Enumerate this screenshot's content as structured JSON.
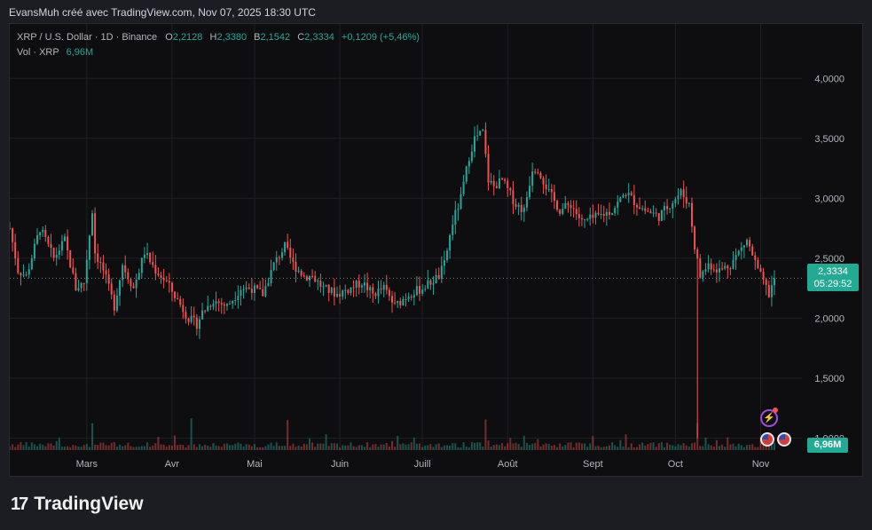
{
  "header": {
    "author_line": "EvansMuh créé avec TradingView.com, Nov 07, 2025 18:30 UTC"
  },
  "legend": {
    "symbol": "XRP / U.S. Dollar · 1D · Binance",
    "o_label": "O",
    "o_value": "2,2128",
    "h_label": "H",
    "h_value": "2,3380",
    "b_label": "B",
    "b_value": "2,1542",
    "c_label": "C",
    "c_value": "2,3334",
    "change": "+0,1209 (+5,46%)",
    "vol_label": "Vol · XRP",
    "vol_value": "6,96M"
  },
  "price_tag": {
    "price": "2,3334",
    "countdown": "05:29:52"
  },
  "volume_tag": "6,96M",
  "brand": {
    "logo": "17",
    "name": "TradingView"
  },
  "colors": {
    "up": "#26a69a",
    "down": "#ef5350",
    "background": "#0e0e10",
    "grid": "#1f2024",
    "text": "#b2b5be"
  },
  "chart_data": {
    "type": "candlestick",
    "symbol": "XRP / U.S. Dollar",
    "interval": "1D",
    "exchange": "Binance",
    "y_ticks": [
      "4,0000",
      "3,5000",
      "3,0000",
      "2,5000",
      "2,0000",
      "1,5000",
      "1,0000"
    ],
    "y_tick_values": [
      4.0,
      3.5,
      3.0,
      2.5,
      2.0,
      1.5,
      1.0
    ],
    "x_labels": [
      "Mars",
      "Avr",
      "Mai",
      "Juin",
      "Juill",
      "Août",
      "Sept",
      "Oct",
      "Nov"
    ],
    "x_label_days": [
      28,
      59,
      89,
      120,
      150,
      181,
      212,
      242,
      273
    ],
    "y_range": [
      0.9,
      4.35
    ],
    "last_close": 2.3334,
    "close_keyframes": [
      [
        0,
        2.75
      ],
      [
        3,
        2.4
      ],
      [
        6,
        2.35
      ],
      [
        11,
        2.75
      ],
      [
        16,
        2.5
      ],
      [
        20,
        2.65
      ],
      [
        24,
        2.25
      ],
      [
        27,
        2.3
      ],
      [
        30,
        2.9
      ],
      [
        31,
        2.55
      ],
      [
        34,
        2.4
      ],
      [
        38,
        2.1
      ],
      [
        41,
        2.45
      ],
      [
        45,
        2.25
      ],
      [
        49,
        2.55
      ],
      [
        53,
        2.4
      ],
      [
        57,
        2.3
      ],
      [
        61,
        2.15
      ],
      [
        65,
        2.0
      ],
      [
        68,
        1.95
      ],
      [
        70,
        2.05
      ],
      [
        74,
        2.15
      ],
      [
        79,
        2.1
      ],
      [
        84,
        2.25
      ],
      [
        88,
        2.25
      ],
      [
        92,
        2.2
      ],
      [
        96,
        2.45
      ],
      [
        100,
        2.6
      ],
      [
        103,
        2.45
      ],
      [
        107,
        2.35
      ],
      [
        110,
        2.35
      ],
      [
        114,
        2.25
      ],
      [
        119,
        2.2
      ],
      [
        124,
        2.25
      ],
      [
        128,
        2.3
      ],
      [
        132,
        2.2
      ],
      [
        136,
        2.25
      ],
      [
        140,
        2.1
      ],
      [
        145,
        2.2
      ],
      [
        150,
        2.25
      ],
      [
        156,
        2.35
      ],
      [
        158,
        2.45
      ],
      [
        161,
        2.8
      ],
      [
        164,
        3.0
      ],
      [
        167,
        3.35
      ],
      [
        169,
        3.5
      ],
      [
        172,
        3.55
      ],
      [
        174,
        3.15
      ],
      [
        176,
        3.1
      ],
      [
        179,
        3.15
      ],
      [
        184,
        2.95
      ],
      [
        187,
        2.9
      ],
      [
        190,
        3.25
      ],
      [
        192,
        3.25
      ],
      [
        196,
        3.05
      ],
      [
        200,
        2.9
      ],
      [
        204,
        2.95
      ],
      [
        208,
        2.8
      ],
      [
        214,
        2.85
      ],
      [
        219,
        2.9
      ],
      [
        224,
        3.05
      ],
      [
        228,
        2.95
      ],
      [
        231,
        2.9
      ],
      [
        236,
        2.85
      ],
      [
        240,
        2.95
      ],
      [
        244,
        3.05
      ],
      [
        247,
        2.95
      ],
      [
        249,
        2.6
      ],
      [
        251,
        2.35
      ],
      [
        254,
        2.45
      ],
      [
        258,
        2.4
      ],
      [
        262,
        2.45
      ],
      [
        265,
        2.55
      ],
      [
        268,
        2.65
      ],
      [
        272,
        2.4
      ],
      [
        275,
        2.25
      ],
      [
        276,
        2.2
      ],
      [
        278,
        2.3334
      ]
    ],
    "flash_crash": {
      "day": 250,
      "low": 1.0
    },
    "volume_spike_days": [
      30,
      66,
      101,
      173,
      250
    ],
    "last_volume": "6,96M"
  }
}
